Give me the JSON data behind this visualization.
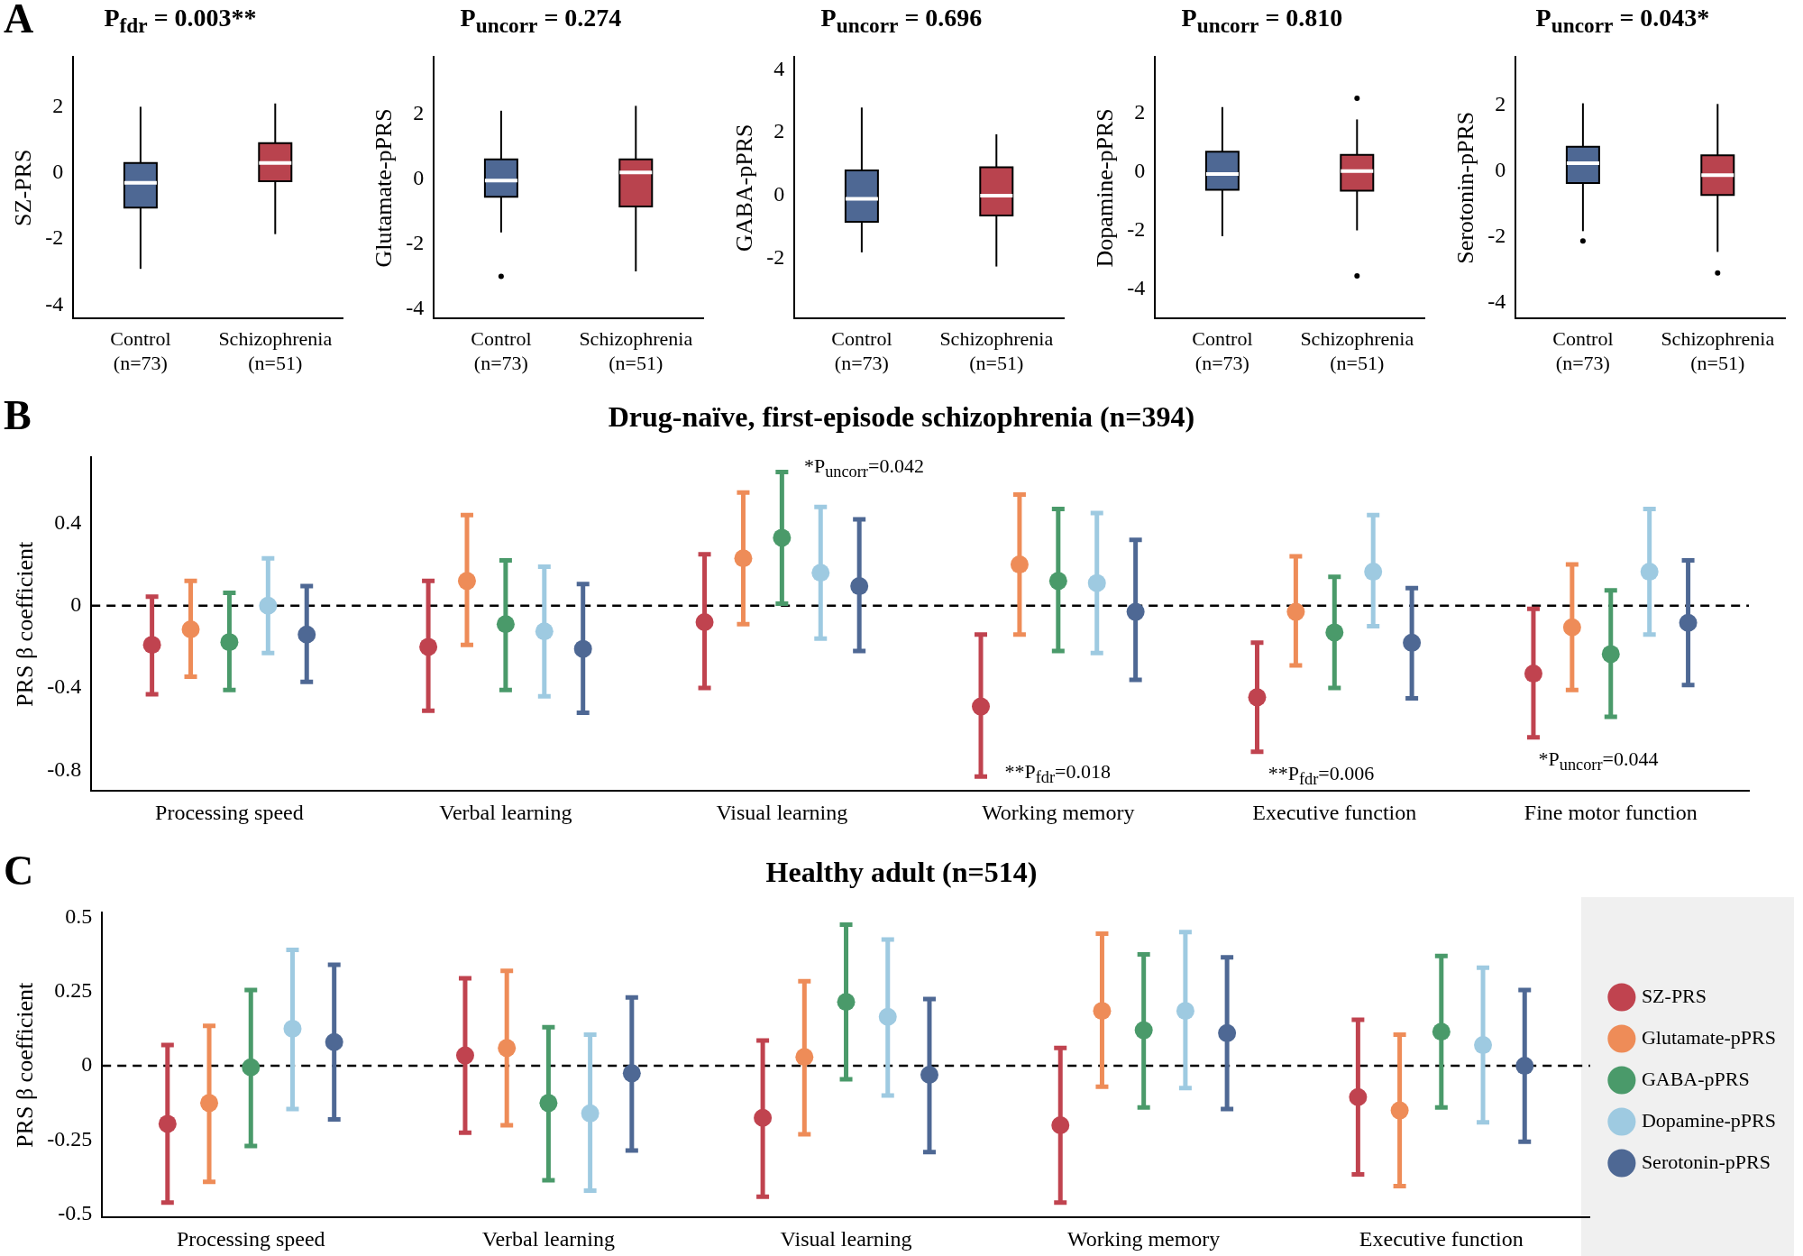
{
  "chart_data": [
    {
      "type": "box",
      "title": "P$_{fdr}$ = 0.003**",
      "ylabel": "SZ-PRS",
      "annotations": [
        "A"
      ],
      "categories": [
        "Control (n=73)",
        "Schizophrenia (n=51)"
      ],
      "colors": [
        "#4e6894",
        "#b9434e"
      ],
      "ylim": [
        -4.4,
        3.5
      ],
      "yticks": [
        -4,
        -2,
        0,
        2
      ],
      "boxes": [
        {
          "low": -2.9,
          "q1": -1.05,
          "median": -0.3,
          "q3": 0.3,
          "high": 2.0
        },
        {
          "low": -1.85,
          "q1": -0.25,
          "median": 0.3,
          "q3": 0.9,
          "high": 2.1
        }
      ]
    },
    {
      "type": "box",
      "title": "P$_{uncorr}$ = 0.274",
      "ylabel": "Glutamate-pPRS",
      "categories": [
        "Control (n=73)",
        "Schizophrenia (n=51)"
      ],
      "colors": [
        "#4e6894",
        "#b9434e"
      ],
      "ylim": [
        -4.3,
        3.75
      ],
      "yticks": [
        -4,
        -2,
        0,
        2
      ],
      "boxes": [
        {
          "low": -1.65,
          "q1": -0.55,
          "median": -0.05,
          "q3": 0.6,
          "high": 2.1,
          "outliers": [
            -3.0
          ]
        },
        {
          "low": -2.85,
          "q1": -0.85,
          "median": 0.2,
          "q3": 0.6,
          "high": 2.25
        }
      ]
    },
    {
      "type": "box",
      "title": "P$_{uncorr}$ = 0.696",
      "ylabel": "GABA-pPRS",
      "categories": [
        "Control (n=73)",
        "Schizophrenia (n=51)"
      ],
      "colors": [
        "#4e6894",
        "#b9434e"
      ],
      "ylim": [
        -3.9,
        4.4
      ],
      "yticks": [
        -2,
        0,
        2,
        4
      ],
      "boxes": [
        {
          "low": -1.8,
          "q1": -0.83,
          "median": -0.1,
          "q3": 0.8,
          "high": 2.8
        },
        {
          "low": -2.25,
          "q1": -0.63,
          "median": 0.0,
          "q3": 0.9,
          "high": 1.95
        }
      ]
    },
    {
      "type": "box",
      "title": "P$_{uncorr}$ = 0.810",
      "ylabel": "Dopamine-pPRS",
      "categories": [
        "Control (n=73)",
        "Schizophrenia (n=51)"
      ],
      "colors": [
        "#4e6894",
        "#b9434e"
      ],
      "ylim": [
        -5.0,
        3.9
      ],
      "yticks": [
        -4,
        -2,
        0,
        2
      ],
      "boxes": [
        {
          "low": -2.2,
          "q1": -0.62,
          "median": -0.08,
          "q3": 0.68,
          "high": 2.2
        },
        {
          "low": -2.0,
          "q1": -0.65,
          "median": 0.02,
          "q3": 0.57,
          "high": 1.78,
          "outliers": [
            2.5,
            -3.55
          ]
        }
      ]
    },
    {
      "type": "box",
      "title": "P$_{uncorr}$ = 0.043*",
      "ylabel": "Serotonin-pPRS",
      "categories": [
        "Control (n=73)",
        "Schizophrenia (n=51)"
      ],
      "colors": [
        "#4e6894",
        "#b9434e"
      ],
      "ylim": [
        -4.48,
        3.45
      ],
      "yticks": [
        -4,
        -2,
        0,
        2
      ],
      "boxes": [
        {
          "low": -1.83,
          "q1": -0.37,
          "median": 0.23,
          "q3": 0.73,
          "high": 2.05,
          "outliers": [
            -2.13
          ]
        },
        {
          "low": -2.46,
          "q1": -0.73,
          "median": -0.13,
          "q3": 0.47,
          "high": 2.03,
          "outliers": [
            -3.1
          ]
        }
      ]
    },
    {
      "type": "scatter",
      "title": "Drug-naïve, first-episode schizophrenia (n=394)",
      "ylabel": "PRS β coefficient",
      "marker": "circle",
      "legend": false,
      "categories": [
        "Processing speed",
        "Verbal learning",
        "Visual learning",
        "Working memory",
        "Executive function",
        "Fine motor function"
      ],
      "ylim": [
        -0.9,
        0.72
      ],
      "yticks": [
        -0.8,
        -0.4,
        0,
        0.4
      ],
      "ref_lines": [
        {
          "axis": "y",
          "value": 0,
          "line_style": "dashed"
        }
      ],
      "annotations": [
        "B",
        "*P$_{uncorr}$=0.042",
        "**P$_{fdr}$=0.018",
        "**P$_{fdr}$=0.006",
        "*P$_{uncorr}$=0.044"
      ],
      "series": [
        {
          "color": "#c0434f",
          "values": [
            -0.19,
            -0.2,
            -0.08,
            -0.49,
            -0.445,
            -0.33
          ],
          "errors": [
            [
              -0.43,
              0.044
            ],
            [
              -0.51,
              0.12
            ],
            [
              -0.4,
              0.25
            ],
            [
              -0.83,
              -0.14
            ],
            [
              -0.71,
              -0.18
            ],
            [
              -0.64,
              -0.015
            ]
          ]
        },
        {
          "color": "#ee8c58",
          "values": [
            -0.115,
            0.12,
            0.23,
            0.2,
            -0.03,
            -0.105
          ],
          "errors": [
            [
              -0.345,
              0.12
            ],
            [
              -0.19,
              0.44
            ],
            [
              -0.09,
              0.55
            ],
            [
              -0.14,
              0.54
            ],
            [
              -0.29,
              0.24
            ],
            [
              -0.41,
              0.2
            ]
          ]
        },
        {
          "color": "#4a9a6a",
          "values": [
            -0.177,
            -0.09,
            0.33,
            0.12,
            -0.13,
            -0.235
          ],
          "errors": [
            [
              -0.41,
              0.062
            ],
            [
              -0.41,
              0.22
            ],
            [
              0.01,
              0.65
            ],
            [
              -0.22,
              0.47
            ],
            [
              -0.4,
              0.14
            ],
            [
              -0.54,
              0.075
            ]
          ]
        },
        {
          "color": "#9ecae1",
          "values": [
            0.0,
            -0.125,
            0.16,
            0.11,
            0.165,
            0.165
          ],
          "errors": [
            [
              -0.23,
              0.23
            ],
            [
              -0.44,
              0.19
            ],
            [
              -0.16,
              0.48
            ],
            [
              -0.23,
              0.45
            ],
            [
              -0.1,
              0.44
            ],
            [
              -0.14,
              0.47
            ]
          ]
        },
        {
          "color": "#4e6894",
          "values": [
            -0.14,
            -0.21,
            0.095,
            -0.03,
            -0.18,
            -0.083
          ],
          "errors": [
            [
              -0.37,
              0.095
            ],
            [
              -0.52,
              0.105
            ],
            [
              -0.22,
              0.42
            ],
            [
              -0.36,
              0.32
            ],
            [
              -0.45,
              0.085
            ],
            [
              -0.385,
              0.22
            ]
          ]
        }
      ]
    },
    {
      "type": "scatter",
      "title": "Healthy adult (n=514)",
      "ylabel": "PRS β coefficient",
      "marker": "circle",
      "legend": "right",
      "categories": [
        "Processing speed",
        "Verbal learning",
        "Visual learning",
        "Working memory",
        "Executive function"
      ],
      "ylim": [
        -0.51,
        0.515
      ],
      "yticks": [
        -0.5,
        -0.25,
        0,
        0.25,
        0.5
      ],
      "ref_lines": [
        {
          "axis": "y",
          "value": 0,
          "line_style": "dashed"
        }
      ],
      "annotations": [
        "C"
      ],
      "series": [
        {
          "name": "SZ-PRS",
          "color": "#c0434f",
          "values": [
            -0.195,
            0.035,
            -0.175,
            -0.2,
            -0.105
          ],
          "errors": [
            [
              -0.46,
              0.07
            ],
            [
              -0.225,
              0.295
            ],
            [
              -0.44,
              0.085
            ],
            [
              -0.46,
              0.06
            ],
            [
              -0.365,
              0.155
            ]
          ]
        },
        {
          "name": "Glutamate-pPRS",
          "color": "#ee8c58",
          "values": [
            -0.125,
            0.06,
            0.03,
            0.185,
            -0.15
          ],
          "errors": [
            [
              -0.39,
              0.135
            ],
            [
              -0.2,
              0.32
            ],
            [
              -0.23,
              0.285
            ],
            [
              -0.07,
              0.445
            ],
            [
              -0.405,
              0.105
            ]
          ]
        },
        {
          "name": "GABA-pPRS",
          "color": "#4a9a6a",
          "values": [
            -0.005,
            -0.125,
            0.215,
            0.12,
            0.115
          ],
          "errors": [
            [
              -0.27,
              0.255
            ],
            [
              -0.385,
              0.13
            ],
            [
              -0.045,
              0.475
            ],
            [
              -0.14,
              0.375
            ],
            [
              -0.14,
              0.37
            ]
          ]
        },
        {
          "name": "Dopamine-pPRS",
          "color": "#9ecae1",
          "values": [
            0.125,
            -0.16,
            0.165,
            0.185,
            0.07
          ],
          "errors": [
            [
              -0.145,
              0.39
            ],
            [
              -0.42,
              0.105
            ],
            [
              -0.1,
              0.425
            ],
            [
              -0.075,
              0.45
            ],
            [
              -0.19,
              0.33
            ]
          ]
        },
        {
          "name": "Serotonin-pPRS",
          "color": "#4e6894",
          "values": [
            0.08,
            -0.025,
            -0.03,
            0.11,
            0.0
          ],
          "errors": [
            [
              -0.18,
              0.34
            ],
            [
              -0.285,
              0.23
            ],
            [
              -0.29,
              0.225
            ],
            [
              -0.145,
              0.365
            ],
            [
              -0.255,
              0.255
            ]
          ]
        }
      ]
    }
  ]
}
